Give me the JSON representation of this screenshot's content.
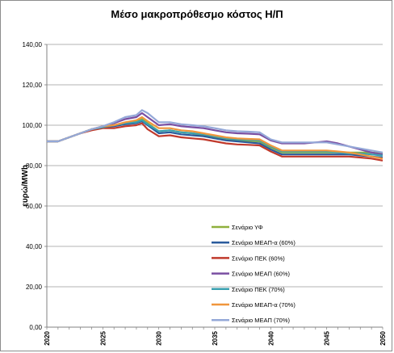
{
  "chart_data": {
    "type": "line",
    "title": "Μέσο μακροπρόθεσμο κόστος Η/Π",
    "xlabel": "",
    "ylabel": "ευρώ/MWh",
    "xlim": [
      2020,
      2050
    ],
    "ylim": [
      0,
      140
    ],
    "y_ticks": [
      "0,00",
      "20,00",
      "40,00",
      "60,00",
      "80,00",
      "100,00",
      "120,00",
      "140,00"
    ],
    "x_ticks": [
      "2020",
      "2025",
      "2030",
      "2035",
      "2040",
      "2045",
      "2050"
    ],
    "grid": "horizontal",
    "legend_position": "bottom-center",
    "x": [
      2020,
      2021,
      2022,
      2023,
      2024,
      2025,
      2026,
      2027,
      2028,
      2028.5,
      2029,
      2030,
      2031,
      2032,
      2033,
      2034,
      2035,
      2036,
      2037,
      2038,
      2039,
      2040,
      2041,
      2042,
      2043,
      2044,
      2045,
      2046,
      2047,
      2048,
      2049,
      2050
    ],
    "series": [
      {
        "name": "Σενάριο ΥΦ",
        "color": "#8fb03c",
        "values": [
          92,
          92,
          94,
          96,
          98,
          99,
          100,
          101,
          102,
          103,
          101,
          97,
          97.5,
          96.5,
          96,
          95,
          94,
          93,
          92.5,
          92.2,
          92,
          89,
          86.5,
          86.5,
          86.5,
          86.5,
          86.5,
          86.5,
          86.5,
          86.5,
          86.5,
          86
        ]
      },
      {
        "name": "Σενάριο ΜΕΑΠ-α (60%)",
        "color": "#2a5b9c",
        "values": [
          92,
          92,
          94,
          96,
          98,
          99,
          99.5,
          100.5,
          101,
          102,
          100,
          96,
          96.5,
          95.5,
          95,
          94.5,
          93.5,
          92.5,
          92,
          91.5,
          91,
          88,
          85.5,
          85.5,
          85.5,
          85.5,
          85.5,
          85.5,
          85.5,
          85,
          84.5,
          84
        ]
      },
      {
        "name": "Σενάριο ΠΕΚ (60%)",
        "color": "#c0392b",
        "values": [
          92,
          92,
          94,
          96,
          97.5,
          98.5,
          98.5,
          99.5,
          100,
          101,
          98,
          94.5,
          95,
          94,
          93.5,
          93,
          92,
          91,
          90.5,
          90.3,
          90,
          87,
          84.5,
          84.5,
          84.5,
          84.5,
          84.5,
          84.5,
          84.5,
          84,
          83.5,
          82.5
        ]
      },
      {
        "name": "Σενάριο ΜΕΑΠ (60%)",
        "color": "#7a4fa2",
        "values": [
          92,
          92,
          94,
          96,
          98,
          99.5,
          101,
          103,
          104,
          106,
          104,
          100,
          100.5,
          99.5,
          99,
          98.5,
          97.5,
          96.5,
          96,
          95.8,
          95.5,
          92.5,
          91,
          91,
          91,
          91.5,
          92,
          91,
          89.5,
          88,
          86.5,
          85.5
        ]
      },
      {
        "name": "Σενάριο ΠΕΚ (70%)",
        "color": "#3aa0b0",
        "values": [
          92,
          92,
          94,
          96,
          98,
          99,
          100,
          101,
          101.5,
          102.5,
          100.5,
          97,
          97.5,
          96.5,
          96,
          95.5,
          94.5,
          93.5,
          93,
          92.8,
          92.5,
          89.5,
          87,
          87,
          87,
          87,
          87,
          86.5,
          86,
          86,
          85.5,
          85
        ]
      },
      {
        "name": "Σενάριο ΜΕΑΠ-α (70%)",
        "color": "#f0963c",
        "values": [
          92,
          92,
          94,
          96,
          98,
          99.5,
          100,
          101.5,
          102.5,
          104,
          102,
          98.5,
          98.5,
          97.5,
          97,
          96,
          95,
          94,
          93.5,
          93.2,
          93,
          90,
          87.5,
          87.5,
          87.5,
          87.5,
          87.5,
          87,
          86.5,
          85.5,
          84.5,
          83.5
        ]
      },
      {
        "name": "Σενάριο ΜΕΑΠ (70%)",
        "color": "#94a8d8",
        "values": [
          92,
          92,
          94,
          96,
          98,
          99.5,
          101.5,
          104,
          105,
          107.5,
          106,
          101.5,
          101.5,
          100.5,
          100,
          99.5,
          98.5,
          97.5,
          97,
          96.8,
          96.5,
          93,
          91.5,
          91.5,
          91.5,
          91.5,
          91.5,
          90.5,
          89.5,
          88.5,
          87.5,
          86.5
        ]
      }
    ]
  }
}
